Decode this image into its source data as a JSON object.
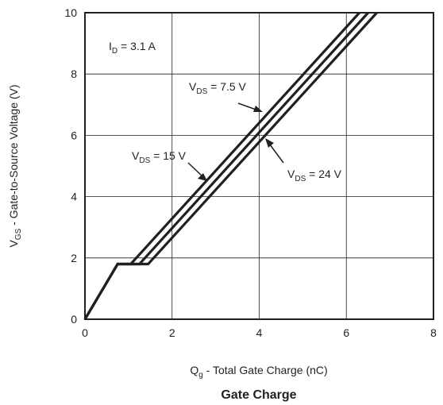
{
  "chart_data": {
    "type": "line",
    "title": "Gate Charge",
    "xlabel": {
      "main": "Q",
      "sub": "g",
      "rest": " - Total Gate Charge (nC)"
    },
    "ylabel": {
      "main": "V",
      "sub": "GS",
      "rest": " - Gate-to-Source Voltage (V)"
    },
    "xlim": [
      0,
      8
    ],
    "ylim": [
      0,
      10
    ],
    "xticks": [
      "0",
      "2",
      "4",
      "6",
      "8"
    ],
    "yticks": [
      "0",
      "2",
      "4",
      "6",
      "8",
      "10"
    ],
    "grid": true,
    "condition": {
      "main": "I",
      "sub": "D",
      "rest": " = 3.1 A"
    },
    "series": [
      {
        "label": {
          "main": "V",
          "sub": "DS",
          "rest": " = 7.5 V"
        },
        "points": [
          [
            0,
            0
          ],
          [
            0.75,
            1.8
          ],
          [
            1.05,
            1.8
          ],
          [
            6.3,
            10
          ]
        ]
      },
      {
        "label": {
          "main": "V",
          "sub": "DS",
          "rest": " = 15 V"
        },
        "points": [
          [
            0,
            0
          ],
          [
            0.75,
            1.8
          ],
          [
            1.25,
            1.8
          ],
          [
            6.5,
            10
          ]
        ]
      },
      {
        "label": {
          "main": "V",
          "sub": "DS",
          "rest": " = 24 V"
        },
        "points": [
          [
            0,
            0
          ],
          [
            0.75,
            1.8
          ],
          [
            1.45,
            1.8
          ],
          [
            6.7,
            10
          ]
        ]
      }
    ]
  }
}
